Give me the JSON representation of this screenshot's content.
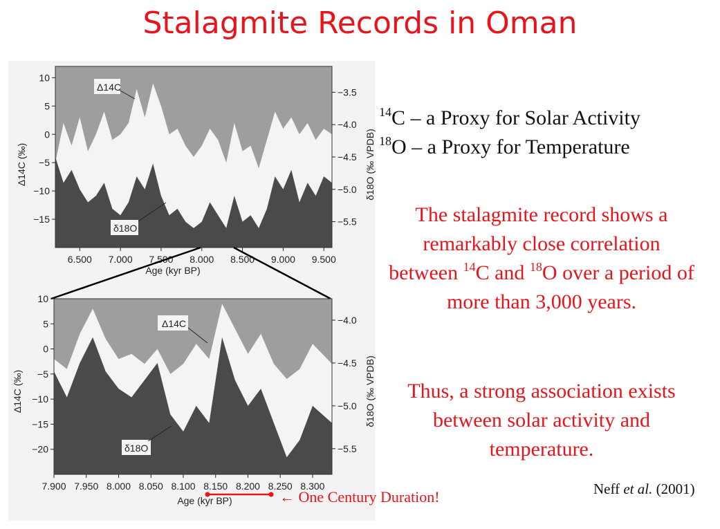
{
  "title": "Stalagmite Records in Oman",
  "bullets": [
    {
      "sup": "14",
      "text": "C – a Proxy for Solar Activity"
    },
    {
      "sup": "18",
      "text": "O – a Proxy for Temperature"
    }
  ],
  "paragraph1": {
    "a": "The stalagmite record shows a remarkably close correlation between ",
    "sup1": "14",
    "b": "C and ",
    "sup2": "18",
    "c": "O over a period of more than 3,000 years."
  },
  "paragraph2": "Thus, a strong association exists between solar activity and temperature.",
  "citation": {
    "author": "Neff ",
    "etal": "et al.",
    "year": " (2001)"
  },
  "century_note": "One Century Duration!",
  "colors": {
    "accent": "#e8141c",
    "fill_dark": "#4a4a4a",
    "fill_light": "#9e9e9e",
    "white_band": "#f4f4f4"
  },
  "chart_data": [
    {
      "type": "area",
      "x_axis": {
        "label": "Age (kyr BP)",
        "range": [
          6.2,
          9.6
        ],
        "ticks": [
          "6.500",
          "7.000",
          "7.500",
          "8.000",
          "8.500",
          "9.000",
          "9.500"
        ]
      },
      "y_left": {
        "label": "Δ14C (‰)",
        "range": [
          -20,
          12
        ],
        "ticks": [
          "10",
          "5",
          "0",
          "−5",
          "−10",
          "−15"
        ]
      },
      "y_right": {
        "label": "δ18O (‰ VPDB)",
        "range": [
          -5.9,
          -3.1
        ],
        "ticks": [
          "−3.5",
          "−4.0",
          "−4.5",
          "−5.0",
          "−5.5"
        ]
      },
      "annotations": [
        "Δ14C",
        "δ18O"
      ],
      "series": [
        {
          "name": "Δ14C",
          "axis": "left",
          "x": [
            6.2,
            6.3,
            6.4,
            6.5,
            6.6,
            6.7,
            6.8,
            6.9,
            7.0,
            7.1,
            7.2,
            7.3,
            7.4,
            7.5,
            7.6,
            7.7,
            7.8,
            7.9,
            8.0,
            8.1,
            8.2,
            8.3,
            8.4,
            8.5,
            8.6,
            8.7,
            8.8,
            8.9,
            9.0,
            9.1,
            9.2,
            9.3,
            9.4,
            9.5,
            9.6
          ],
          "values": [
            -5,
            2,
            -2,
            3,
            -3,
            0,
            4,
            -1,
            0,
            2,
            8,
            3,
            9,
            5,
            0,
            1,
            -2,
            -4,
            -2,
            1,
            -1,
            -5,
            2,
            -3,
            -2,
            -6,
            -1,
            4,
            1,
            3,
            0,
            2,
            -1,
            1,
            0
          ]
        },
        {
          "name": "δ18O",
          "axis": "right",
          "x": [
            6.2,
            6.3,
            6.4,
            6.5,
            6.6,
            6.7,
            6.8,
            6.9,
            7.0,
            7.1,
            7.2,
            7.3,
            7.4,
            7.5,
            7.6,
            7.7,
            7.8,
            7.9,
            8.0,
            8.1,
            8.2,
            8.3,
            8.4,
            8.5,
            8.6,
            8.7,
            8.8,
            8.9,
            9.0,
            9.1,
            9.2,
            9.3,
            9.4,
            9.5,
            9.6
          ],
          "values": [
            -4.5,
            -4.9,
            -4.7,
            -5.0,
            -5.2,
            -5.1,
            -4.9,
            -5.3,
            -5.4,
            -5.2,
            -4.8,
            -5.0,
            -4.6,
            -5.1,
            -5.4,
            -5.3,
            -5.5,
            -5.6,
            -5.5,
            -5.2,
            -5.4,
            -5.6,
            -5.1,
            -5.5,
            -5.4,
            -5.6,
            -5.3,
            -4.8,
            -5.0,
            -4.7,
            -5.2,
            -4.9,
            -5.1,
            -4.8,
            -4.9
          ]
        }
      ]
    },
    {
      "type": "area",
      "x_axis": {
        "label": "Age (kyr BP)",
        "range": [
          7.9,
          8.33
        ],
        "ticks": [
          "7.900",
          "7.950",
          "8.000",
          "8.050",
          "8.100",
          "8.150",
          "8.200",
          "8.250",
          "8.300"
        ]
      },
      "y_left": {
        "label": "Δ14C (‰)",
        "range": [
          -25,
          10
        ],
        "ticks": [
          "10",
          "5",
          "0",
          "−5",
          "−10",
          "−15",
          "−20"
        ]
      },
      "y_right": {
        "label": "δ18O (‰ VPDB)",
        "range": [
          -5.8,
          -3.75
        ],
        "ticks": [
          "−4.0",
          "−4.5",
          "−5.0",
          "−5.5"
        ]
      },
      "annotations": [
        "Δ14C",
        "δ18O"
      ],
      "series": [
        {
          "name": "Δ14C",
          "axis": "left",
          "x": [
            7.9,
            7.92,
            7.94,
            7.96,
            7.98,
            8.0,
            8.02,
            8.04,
            8.06,
            8.08,
            8.1,
            8.12,
            8.14,
            8.16,
            8.18,
            8.2,
            8.22,
            8.24,
            8.26,
            8.28,
            8.3,
            8.33
          ],
          "values": [
            -2,
            -4,
            3,
            8,
            2,
            -2,
            -1,
            -3,
            0,
            -5,
            -3,
            1,
            -2,
            9,
            4,
            -1,
            3,
            -3,
            -6,
            -4,
            1,
            -3
          ]
        },
        {
          "name": "δ18O",
          "axis": "right",
          "x": [
            7.9,
            7.92,
            7.94,
            7.96,
            7.98,
            8.0,
            8.02,
            8.04,
            8.06,
            8.08,
            8.1,
            8.12,
            8.14,
            8.16,
            8.18,
            8.2,
            8.22,
            8.24,
            8.26,
            8.28,
            8.3,
            8.33
          ],
          "values": [
            -4.6,
            -4.9,
            -4.5,
            -4.2,
            -4.6,
            -4.8,
            -4.9,
            -4.7,
            -4.5,
            -5.1,
            -5.3,
            -5.0,
            -5.2,
            -4.2,
            -4.7,
            -5.0,
            -4.8,
            -5.2,
            -5.6,
            -5.4,
            -5.0,
            -5.2
          ]
        }
      ]
    }
  ]
}
